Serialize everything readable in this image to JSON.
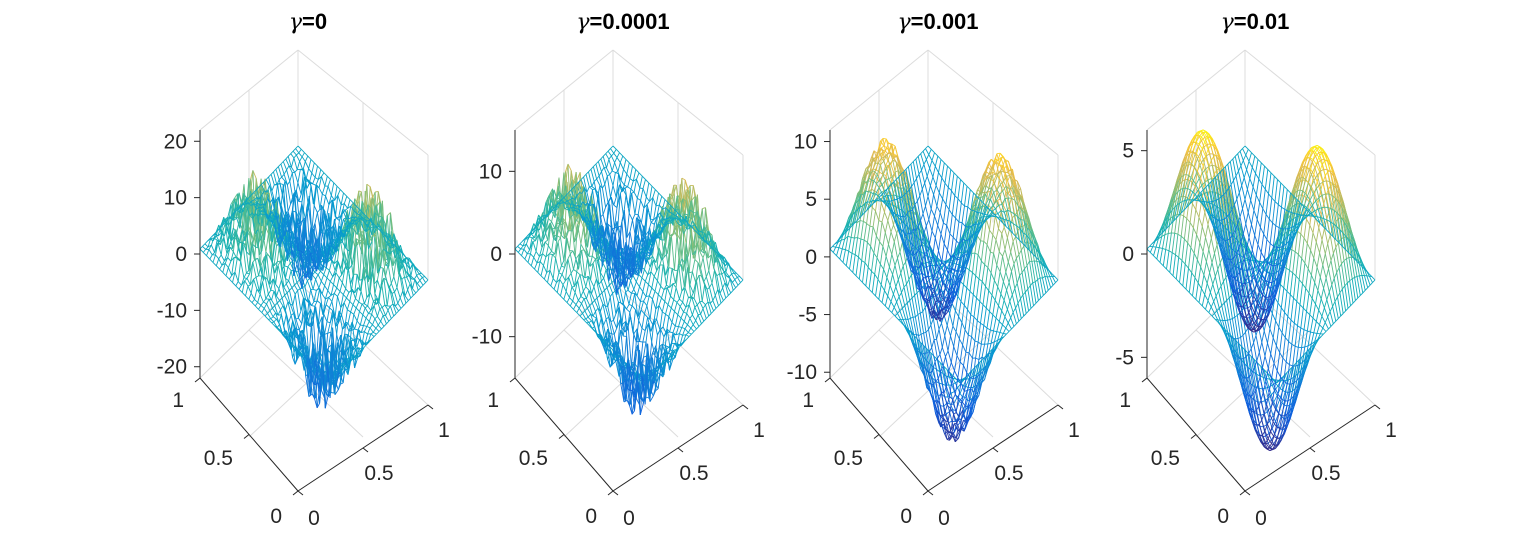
{
  "figure": {
    "symbol": "γ",
    "colormap": "parula"
  },
  "chart_data": [
    {
      "type": "surface",
      "title": "γ=0",
      "title_prefix": "γ",
      "title_value": "=0",
      "gamma": 0,
      "zlim": [
        -22,
        22
      ],
      "zticks": [
        -20,
        -10,
        0,
        10,
        20
      ],
      "ztick_labels": [
        "-20",
        "-10",
        "0",
        "10",
        "20"
      ],
      "xticks": [
        0,
        0.5,
        1
      ],
      "xtick_labels": [
        "0",
        "0.5",
        "1"
      ],
      "yticks": [
        0,
        0.5,
        1
      ],
      "ytick_labels": [
        "0",
        "0.5",
        "1"
      ],
      "amplitude": 8,
      "noise": 14
    },
    {
      "type": "surface",
      "title": "γ=0.0001",
      "title_prefix": "γ",
      "title_value": "=0.0001",
      "gamma": 0.0001,
      "zlim": [
        -15,
        15
      ],
      "zticks": [
        -10,
        0,
        10
      ],
      "ztick_labels": [
        "-10",
        "0",
        "10"
      ],
      "xticks": [
        0,
        0.5,
        1
      ],
      "xtick_labels": [
        "0",
        "0.5",
        "1"
      ],
      "yticks": [
        0,
        0.5,
        1
      ],
      "ytick_labels": [
        "0",
        "0.5",
        "1"
      ],
      "amplitude": 7,
      "noise": 8
    },
    {
      "type": "surface",
      "title": "γ=0.001",
      "title_prefix": "γ",
      "title_value": "=0.001",
      "gamma": 0.001,
      "zlim": [
        -10.5,
        11
      ],
      "zticks": [
        -10,
        -5,
        0,
        5,
        10
      ],
      "ztick_labels": [
        "-10",
        "-5",
        "0",
        "5",
        "10"
      ],
      "xticks": [
        0,
        0.5,
        1
      ],
      "xtick_labels": [
        "0",
        "0.5",
        "1"
      ],
      "yticks": [
        0,
        0.5,
        1
      ],
      "ytick_labels": [
        "0",
        "0.5",
        "1"
      ],
      "amplitude": 9.5,
      "noise": 1.2
    },
    {
      "type": "surface",
      "title": "γ=0.01",
      "title_prefix": "γ",
      "title_value": "=0.01",
      "gamma": 0.01,
      "zlim": [
        -6,
        6
      ],
      "zticks": [
        -5,
        0,
        5
      ],
      "ztick_labels": [
        "-5",
        "0",
        "5"
      ],
      "xticks": [
        0,
        0.5,
        1
      ],
      "xtick_labels": [
        "0",
        "0.5",
        "1"
      ],
      "yticks": [
        0,
        0.5,
        1
      ],
      "ytick_labels": [
        "0",
        "0.5",
        "1"
      ],
      "amplitude": 6,
      "noise": 0
    }
  ]
}
